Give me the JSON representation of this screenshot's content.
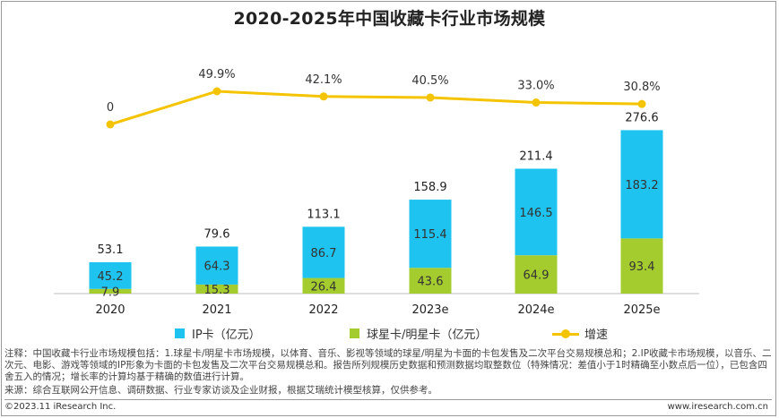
{
  "title": "2020-2025年中国收藏卡行业市场规模",
  "chart_data": {
    "type": "bar",
    "stacked": true,
    "categories": [
      "2020",
      "2021",
      "2022",
      "2023e",
      "2024e",
      "2025e"
    ],
    "series": [
      {
        "name": "球星卡/明星卡（亿元）",
        "values": [
          7.9,
          15.3,
          26.4,
          43.6,
          64.9,
          93.4
        ],
        "color": "#a5cc2e"
      },
      {
        "name": "IP卡（亿元）",
        "values": [
          45.2,
          64.3,
          86.7,
          115.4,
          146.5,
          183.2
        ],
        "color": "#1fc3ef"
      }
    ],
    "totals": [
      "53.1",
      "79.6",
      "113.1",
      "158.9",
      "211.4",
      "276.6"
    ],
    "segment_labels": {
      "球星卡/明星卡（亿元）": [
        "7.9",
        "15.3",
        "26.4",
        "43.6",
        "64.9",
        "93.4"
      ],
      "IP卡（亿元）": [
        "45.2",
        "64.3",
        "86.7",
        "115.4",
        "146.5",
        "183.2"
      ]
    },
    "growth": {
      "name": "增速",
      "values": [
        0,
        49.9,
        42.1,
        40.5,
        33.0,
        30.8
      ],
      "labels": [
        "0",
        "49.9%",
        "42.1%",
        "40.5%",
        "33.0%",
        "30.8%"
      ],
      "color": "#f5c400"
    },
    "legend": {
      "position": "bottom",
      "items": [
        "IP卡（亿元）",
        "球星卡/明星卡（亿元）",
        "增速"
      ]
    },
    "grid": false
  },
  "notes": "注释：中国收藏卡行业市场规模包括：1.球星卡/明星卡市场规模，以体育、音乐、影视等领域的球星/明星为卡面的卡包发售及二次平台交易规模总和；2.IP收藏卡市场规模，以音乐、二次元、电影、游戏等领域的IP形象为卡面的卡包发售及二次平台交易规模总和。报告所列规模历史数据和预测数据均取整数位（特殊情况：差值小于1时精确至小数点后一位），已包含四舍五入的情况；增长率的计算均基于精确的数值进行计算。",
  "source": "来源：综合互联网公开信息、调研数据、行业专家访谈及企业财报，根据艾瑞统计模型核算，仅供参考。",
  "copyright": "©2023.11 iResearch Inc.",
  "website": "www.iresearch.com.cn"
}
